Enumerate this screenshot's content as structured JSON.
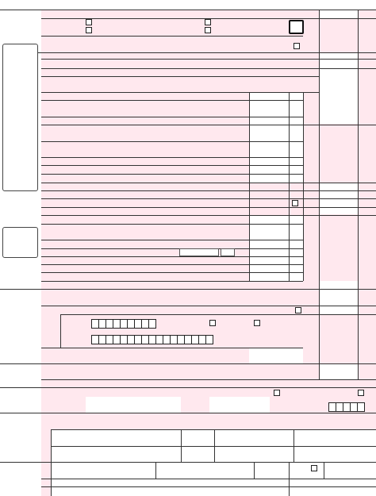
{
  "form": {
    "checkbox_groups": [
      {
        "name": "option-group-top",
        "count": 5
      },
      {
        "name": "id-digit-boxes-short",
        "count": 9
      },
      {
        "name": "id-digit-boxes-long",
        "count": 17
      },
      {
        "name": "code-digit-boxes",
        "count": 5
      }
    ],
    "colors": {
      "field_fill": "#ffe8ee",
      "rule": "#333333"
    }
  }
}
